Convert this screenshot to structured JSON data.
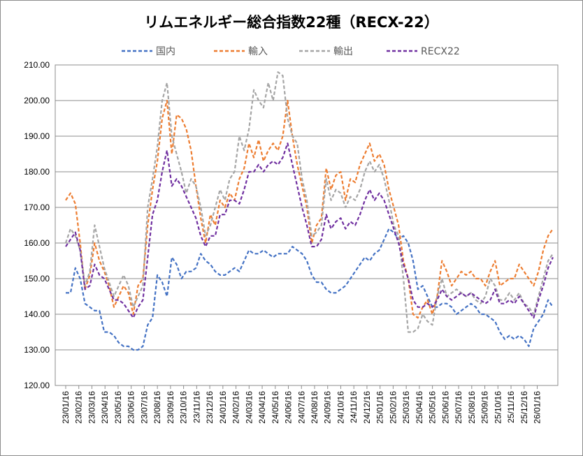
{
  "chart_data": {
    "type": "line",
    "title": "リムエネルギー総合指数22種（RECX-22）",
    "xlabel": "",
    "ylabel": "",
    "ylim": [
      120,
      210
    ],
    "yticks": [
      "120.00",
      "130.00",
      "140.00",
      "150.00",
      "160.00",
      "170.00",
      "180.00",
      "190.00",
      "200.00",
      "210.00"
    ],
    "xticks": [
      "23/01/16",
      "23/02/16",
      "23/03/16",
      "23/04/16",
      "23/05/16",
      "23/06/16",
      "23/07/16",
      "23/08/16",
      "23/09/16",
      "23/10/16",
      "23/11/16",
      "23/12/16",
      "24/01/16",
      "24/02/16",
      "24/03/16",
      "24/04/16",
      "24/05/16",
      "24/06/16",
      "24/07/16",
      "24/08/16",
      "24/09/16",
      "24/10/16",
      "24/11/16",
      "24/12/16",
      "25/01/16",
      "25/02/16",
      "25/03/16",
      "25/04/16",
      "25/05/16",
      "25/06/16",
      "25/07/16",
      "25/08/16",
      "25/09/16",
      "25/10/16",
      "25/11/16",
      "25/12/16",
      "26/01/16"
    ],
    "grid": true,
    "legend": "top",
    "x_month_positions": [
      0,
      1,
      2,
      3,
      4,
      5,
      6,
      7,
      8,
      9,
      10,
      11,
      12,
      13,
      14,
      15,
      16,
      17,
      18,
      19,
      20,
      21,
      22,
      23,
      24,
      25,
      26,
      27,
      28,
      29,
      30,
      31,
      32,
      33,
      34,
      35,
      36,
      37.2
    ],
    "series": [
      {
        "name": "国内",
        "color": "#4472C4",
        "values": [
          146,
          146,
          153,
          150,
          143,
          142,
          141,
          141,
          135,
          135,
          134,
          132,
          131,
          131,
          130,
          130,
          131,
          137,
          139,
          151,
          149,
          145,
          156,
          154,
          150,
          152,
          152,
          153,
          157,
          155,
          154,
          152,
          151,
          151,
          152,
          153,
          152,
          155,
          158,
          157,
          157,
          158,
          157,
          156,
          157,
          157,
          157,
          159,
          158,
          157,
          155,
          151,
          149,
          149,
          147,
          146,
          146,
          147,
          148,
          150,
          152,
          154,
          156,
          155,
          157,
          158,
          161,
          164,
          163,
          161,
          162,
          160,
          155,
          147,
          148,
          145,
          142,
          142,
          143,
          143,
          142,
          140,
          141,
          142,
          143,
          142,
          140,
          140,
          139,
          138,
          135,
          133,
          134,
          133,
          134,
          133,
          131,
          136,
          138,
          140,
          144,
          142
        ]
      },
      {
        "name": "輸入",
        "color": "#ED7D31",
        "values": [
          172,
          174,
          171,
          160,
          147,
          151,
          160,
          155,
          152,
          148,
          142,
          145,
          148,
          146,
          140,
          148,
          150,
          165,
          175,
          183,
          195,
          200,
          185,
          196,
          195,
          192,
          186,
          176,
          167,
          160,
          168,
          165,
          172,
          170,
          174,
          172,
          178,
          181,
          188,
          184,
          189,
          183,
          186,
          188,
          186,
          190,
          200,
          190,
          182,
          176,
          170,
          160,
          165,
          167,
          181,
          175,
          179,
          180,
          172,
          178,
          177,
          182,
          185,
          188,
          183,
          185,
          182,
          175,
          170,
          165,
          155,
          150,
          140,
          139,
          142,
          144,
          140,
          145,
          155,
          152,
          148,
          150,
          152,
          151,
          152,
          150,
          150,
          148,
          152,
          155,
          148,
          149,
          150,
          150,
          154,
          152,
          150,
          148,
          152,
          158,
          162,
          164
        ]
      },
      {
        "name": "輸出",
        "color": "#A5A5A5",
        "values": [
          160,
          164,
          162,
          158,
          148,
          152,
          165,
          159,
          153,
          149,
          145,
          148,
          151,
          148,
          142,
          145,
          148,
          170,
          178,
          187,
          200,
          205,
          190,
          185,
          180,
          174,
          178,
          176,
          170,
          162,
          165,
          170,
          175,
          172,
          178,
          180,
          190,
          186,
          192,
          203,
          200,
          198,
          205,
          200,
          208,
          207,
          195,
          190,
          188,
          178,
          172,
          162,
          163,
          165,
          178,
          172,
          175,
          174,
          170,
          173,
          172,
          175,
          180,
          183,
          180,
          182,
          178,
          172,
          165,
          162,
          150,
          135,
          135,
          136,
          140,
          138,
          137,
          145,
          150,
          145,
          146,
          147,
          146,
          145,
          146,
          144,
          143,
          145,
          150,
          148,
          144,
          144,
          146,
          144,
          146,
          143,
          142,
          140,
          145,
          150,
          155,
          157
        ]
      },
      {
        "name": "RECX22",
        "color": "#7030A0",
        "values": [
          159,
          161,
          163,
          158,
          147,
          148,
          154,
          151,
          150,
          147,
          144,
          144,
          143,
          141,
          139,
          142,
          144,
          156,
          168,
          172,
          180,
          186,
          176,
          178,
          176,
          173,
          170,
          167,
          162,
          159,
          162,
          162,
          168,
          168,
          172,
          172,
          171,
          175,
          180,
          180,
          182,
          180,
          182,
          183,
          182,
          184,
          188,
          182,
          176,
          170,
          165,
          159,
          159,
          161,
          168,
          164,
          166,
          167,
          164,
          166,
          165,
          168,
          172,
          175,
          172,
          174,
          172,
          168,
          164,
          160,
          154,
          150,
          144,
          142,
          142,
          143,
          142,
          144,
          147,
          145,
          144,
          145,
          146,
          145,
          146,
          145,
          144,
          143,
          144,
          147,
          143,
          143,
          144,
          143,
          145,
          143,
          141,
          139,
          144,
          148,
          153,
          156
        ]
      }
    ]
  }
}
